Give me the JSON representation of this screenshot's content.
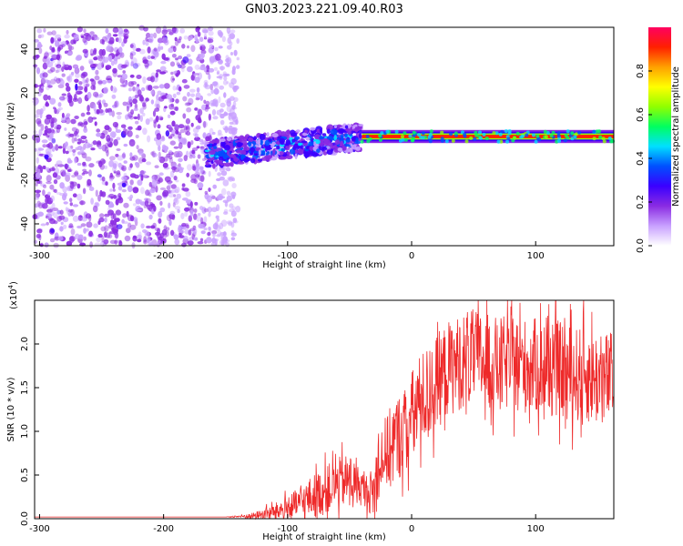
{
  "figure_title": "GN03.2023.221.09.40.R03",
  "chart_data": [
    {
      "type": "heatmap",
      "xlabel": "Height of straight line (km)",
      "ylabel": "Frequency (Hz)",
      "xlim": [
        -304,
        163
      ],
      "ylim": [
        -50,
        50
      ],
      "x_ticks": [
        -300,
        -200,
        -100,
        0,
        100
      ],
      "x_tick_labels": [
        "-300",
        "-200",
        "-100",
        "0",
        "100"
      ],
      "y_ticks": [
        -40,
        -20,
        0,
        20,
        40
      ],
      "y_tick_labels": [
        "-40",
        "-20",
        "0",
        "20",
        "40"
      ],
      "grid": false,
      "colorbar": {
        "label": "Normalized spectral amplitude",
        "range": [
          0.0,
          1.0
        ],
        "ticks": [
          0.0,
          0.2,
          0.4,
          0.6,
          0.8
        ],
        "tick_labels": [
          "0.0",
          "0.2",
          "0.4",
          "0.6",
          "0.8"
        ],
        "colors": [
          "#ffffff",
          "#c8a0ff",
          "#8a2be2",
          "#3a00ff",
          "#0050ff",
          "#00e0ff",
          "#00ff60",
          "#90ff00",
          "#ffff00",
          "#ffa000",
          "#ff2000",
          "#ff0060"
        ]
      },
      "regions": [
        {
          "name": "scattered noise",
          "x_range": [
            -304,
            -140
          ],
          "f_range": [
            -50,
            50
          ],
          "amplitude_range": [
            0.0,
            0.15
          ]
        },
        {
          "name": "signal onset",
          "x_range": [
            -165,
            -40
          ],
          "f_center_range": [
            -8,
            0
          ],
          "f_halfwidth": 6,
          "amplitude_range": [
            0.1,
            0.5
          ]
        },
        {
          "name": "steady tone",
          "x_range": [
            -40,
            163
          ],
          "f_center": 0,
          "f_halfwidth": 3,
          "amplitude_range": [
            0.8,
            1.0
          ]
        }
      ]
    },
    {
      "type": "line",
      "xlabel": "Height of straight line (km)",
      "ylabel": "SNR (10 * v/v)",
      "y_multiplier_label": "(x10",
      "y_multiplier_exp": "4",
      "y_multiplier_close": ")",
      "xlim": [
        -304,
        163
      ],
      "ylim": [
        0,
        2.5
      ],
      "x_ticks": [
        -300,
        -200,
        -100,
        0,
        100
      ],
      "x_tick_labels": [
        "-300",
        "-200",
        "-100",
        "0",
        "100"
      ],
      "y_ticks": [
        0.0,
        0.5,
        1.0,
        1.5,
        2.0
      ],
      "y_tick_labels": [
        "0.0",
        "0.5",
        "1.0",
        "1.5",
        "2.0"
      ],
      "grid": false,
      "series": [
        {
          "color": "#ee2a2a",
          "x": [
            -304,
            -250,
            -200,
            -150,
            -130,
            -120,
            -110,
            -100,
            -90,
            -80,
            -70,
            -60,
            -50,
            -45,
            -40,
            -35,
            -30,
            -28,
            -25,
            -20,
            -15,
            -10,
            -5,
            0,
            5,
            10,
            15,
            20,
            25,
            30,
            40,
            50,
            60,
            70,
            80,
            90,
            100,
            110,
            120,
            130,
            140,
            150,
            163
          ],
          "y": [
            0.02,
            0.02,
            0.02,
            0.02,
            0.03,
            0.05,
            0.08,
            0.12,
            0.18,
            0.25,
            0.32,
            0.4,
            0.45,
            0.4,
            0.35,
            0.3,
            0.3,
            0.55,
            0.7,
            0.75,
            0.85,
            0.95,
            1.0,
            1.15,
            1.3,
            1.4,
            1.45,
            1.55,
            1.65,
            1.72,
            1.8,
            1.85,
            1.8,
            1.75,
            1.8,
            1.75,
            1.75,
            1.7,
            1.7,
            1.65,
            1.65,
            1.6,
            1.6
          ],
          "noise": [
            0.0,
            0.0,
            0.0,
            0.0,
            0.03,
            0.06,
            0.1,
            0.15,
            0.18,
            0.25,
            0.28,
            0.3,
            0.3,
            0.25,
            0.2,
            0.2,
            0.35,
            0.4,
            0.4,
            0.45,
            0.5,
            0.5,
            0.5,
            0.55,
            0.55,
            0.55,
            0.55,
            0.55,
            0.55,
            0.55,
            0.55,
            0.55,
            0.55,
            0.55,
            0.55,
            0.55,
            0.55,
            0.55,
            0.55,
            0.55,
            0.55,
            0.55,
            0.55
          ],
          "samples_per_km": 3
        }
      ]
    }
  ]
}
